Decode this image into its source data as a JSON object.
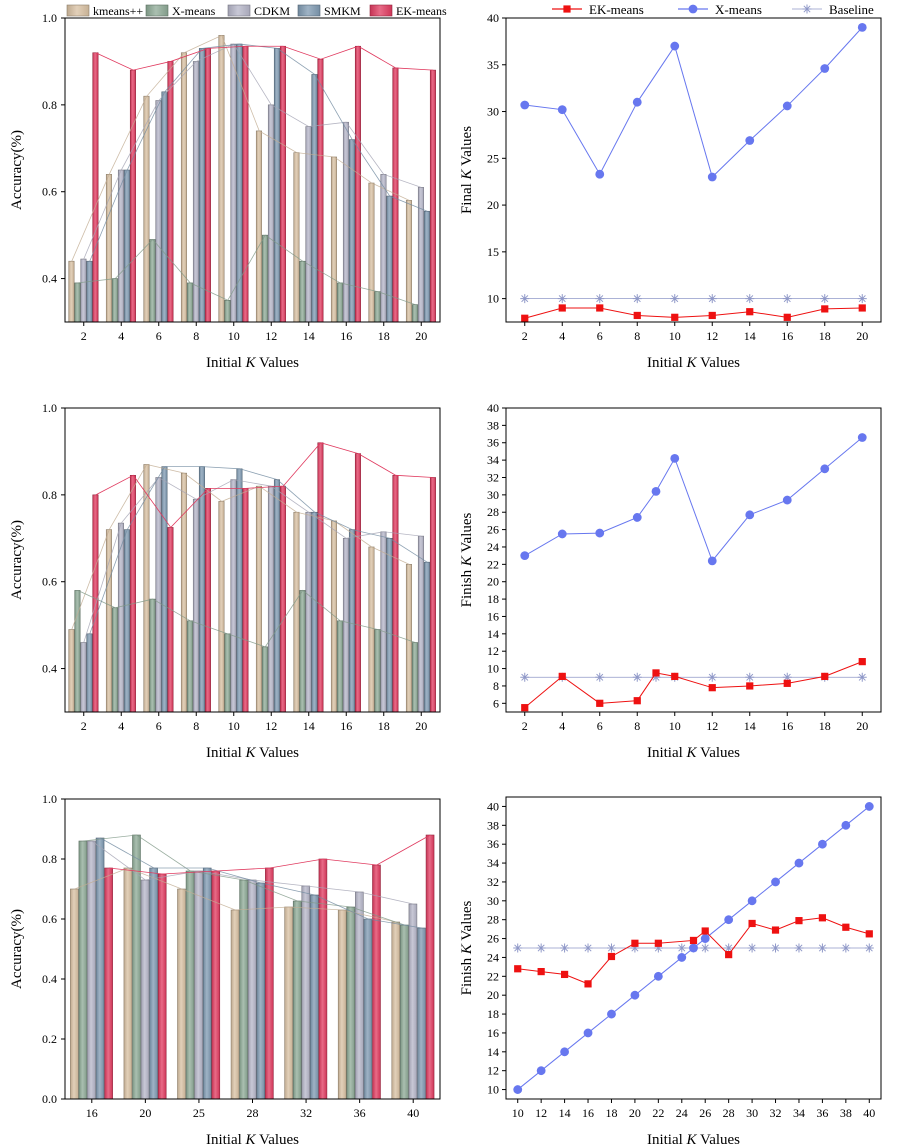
{
  "colors": {
    "kmeanspp": "#d8c0a2",
    "xmeans": "#8daa96",
    "cdkm": "#b6b6c8",
    "smkm": "#7f9ab2",
    "ekmeans": "#e03a5f",
    "ek_line": "#ee1111",
    "xm_line": "#6777ef",
    "baseline": "#8f98c8"
  },
  "chart_data": [
    {
      "id": "acc1",
      "type": "bar",
      "ylabel": "Accuracy(%)",
      "xlabel_pre": "Initial ",
      "xlabel_k": "K",
      "xlabel_post": " Values",
      "categories": [
        "2",
        "4",
        "6",
        "8",
        "10",
        "12",
        "14",
        "16",
        "18",
        "20"
      ],
      "ylim": [
        0.3,
        1.0
      ],
      "yticks": [
        0.4,
        0.6,
        0.8,
        1.0
      ],
      "legend": "top",
      "series": [
        {
          "name": "kmeans++",
          "key": "kmeanspp",
          "values": [
            0.44,
            0.64,
            0.82,
            0.92,
            0.96,
            0.74,
            0.69,
            0.68,
            0.62,
            0.58
          ]
        },
        {
          "name": "X-means",
          "key": "xmeans",
          "values": [
            0.39,
            0.4,
            0.49,
            0.39,
            0.35,
            0.5,
            0.44,
            0.39,
            0.37,
            0.34
          ]
        },
        {
          "name": "CDKM",
          "key": "cdkm",
          "values": [
            0.445,
            0.65,
            0.81,
            0.9,
            0.94,
            0.8,
            0.75,
            0.76,
            0.64,
            0.61
          ]
        },
        {
          "name": "SMKM",
          "key": "smkm",
          "values": [
            0.44,
            0.65,
            0.83,
            0.93,
            0.94,
            0.93,
            0.87,
            0.72,
            0.59,
            0.555
          ]
        },
        {
          "name": "EK-means",
          "key": "ekmeans",
          "values": [
            0.92,
            0.88,
            0.9,
            0.93,
            0.935,
            0.935,
            0.905,
            0.935,
            0.885,
            0.88
          ]
        }
      ]
    },
    {
      "id": "k1",
      "type": "line",
      "ylabel_pre": "Final ",
      "ylabel_k": "K",
      "ylabel_post": " Values",
      "xlabel_pre": "Initial ",
      "xlabel_k": "K",
      "xlabel_post": " Values",
      "x": [
        2,
        4,
        6,
        8,
        10,
        12,
        14,
        16,
        18,
        20
      ],
      "xlim": [
        1,
        21
      ],
      "ylim": [
        7.5,
        40
      ],
      "xticks": [
        2,
        4,
        6,
        8,
        10,
        12,
        14,
        16,
        18,
        20
      ],
      "yticks": [
        10,
        15,
        20,
        25,
        30,
        35,
        40
      ],
      "legend": "top",
      "series": [
        {
          "name": "EK-means",
          "key": "ek_line",
          "marker": "square",
          "values": [
            7.9,
            9.0,
            9.0,
            8.2,
            8.0,
            8.2,
            8.6,
            8.0,
            8.9,
            9.0
          ]
        },
        {
          "name": "X-means",
          "key": "xm_line",
          "marker": "circle",
          "values": [
            30.7,
            30.2,
            23.3,
            31.0,
            37.0,
            23.0,
            26.9,
            30.6,
            34.6,
            39.0
          ]
        },
        {
          "name": "Baseline",
          "key": "baseline",
          "marker": "star",
          "values": [
            10,
            10,
            10,
            10,
            10,
            10,
            10,
            10,
            10,
            10
          ]
        }
      ]
    },
    {
      "id": "acc2",
      "type": "bar",
      "ylabel": "Accuracy(%)",
      "xlabel_pre": "Initial ",
      "xlabel_k": "K",
      "xlabel_post": " Values",
      "categories": [
        "2",
        "4",
        "6",
        "8",
        "10",
        "12",
        "14",
        "16",
        "18",
        "20"
      ],
      "ylim": [
        0.3,
        1.0
      ],
      "yticks": [
        0.4,
        0.6,
        0.8,
        1.0
      ],
      "series": [
        {
          "name": "kmeans++",
          "key": "kmeanspp",
          "values": [
            0.49,
            0.72,
            0.87,
            0.85,
            0.785,
            0.82,
            0.76,
            0.74,
            0.68,
            0.64
          ]
        },
        {
          "name": "X-means",
          "key": "xmeans",
          "values": [
            0.58,
            0.54,
            0.56,
            0.51,
            0.48,
            0.45,
            0.58,
            0.51,
            0.49,
            0.46
          ]
        },
        {
          "name": "CDKM",
          "key": "cdkm",
          "values": [
            0.46,
            0.735,
            0.84,
            0.79,
            0.835,
            0.82,
            0.76,
            0.7,
            0.715,
            0.705
          ]
        },
        {
          "name": "SMKM",
          "key": "smkm",
          "values": [
            0.48,
            0.72,
            0.865,
            0.865,
            0.86,
            0.835,
            0.76,
            0.72,
            0.7,
            0.645
          ]
        },
        {
          "name": "EK-means",
          "key": "ekmeans",
          "values": [
            0.8,
            0.845,
            0.725,
            0.815,
            0.815,
            0.82,
            0.92,
            0.895,
            0.845,
            0.84
          ]
        }
      ]
    },
    {
      "id": "k2",
      "type": "line",
      "ylabel_pre": "Finish ",
      "ylabel_k": "K",
      "ylabel_post": " Values",
      "xlabel_pre": "Initial ",
      "xlabel_k": "K",
      "xlabel_post": " Values",
      "x": [
        2,
        4,
        6,
        8,
        9,
        10,
        12,
        14,
        16,
        18,
        20
      ],
      "xlim": [
        1,
        21
      ],
      "ylim": [
        5,
        40
      ],
      "xticks": [
        2,
        4,
        6,
        8,
        10,
        12,
        14,
        16,
        18,
        20
      ],
      "yticks": [
        6,
        8,
        10,
        12,
        14,
        16,
        18,
        20,
        22,
        24,
        26,
        28,
        30,
        32,
        34,
        36,
        38,
        40
      ],
      "series": [
        {
          "name": "EK-means",
          "key": "ek_line",
          "marker": "square",
          "values": [
            5.5,
            9.1,
            6.0,
            6.3,
            9.5,
            9.1,
            7.8,
            8.0,
            8.3,
            9.1,
            10.8
          ]
        },
        {
          "name": "X-means",
          "key": "xm_line",
          "marker": "circle",
          "values": [
            23.0,
            25.5,
            25.6,
            27.4,
            30.4,
            34.2,
            22.4,
            27.7,
            29.4,
            33.0,
            36.6
          ]
        },
        {
          "name": "Baseline",
          "key": "baseline",
          "marker": "star",
          "values": [
            9,
            9,
            9,
            9,
            9,
            9,
            9,
            9,
            9,
            9,
            9
          ]
        }
      ]
    },
    {
      "id": "acc3",
      "type": "bar",
      "ylabel": "Accuracy(%)",
      "xlabel_pre": "Initial ",
      "xlabel_k": "K",
      "xlabel_post": " Values",
      "categories": [
        "16",
        "20",
        "25",
        "28",
        "32",
        "36",
        "40"
      ],
      "ylim": [
        0.0,
        1.0
      ],
      "yticks": [
        0.0,
        0.2,
        0.4,
        0.6,
        0.8,
        1.0
      ],
      "series": [
        {
          "name": "kmeans++",
          "key": "kmeanspp",
          "values": [
            0.7,
            0.77,
            0.7,
            0.63,
            0.64,
            0.63,
            0.59
          ]
        },
        {
          "name": "X-means",
          "key": "xmeans",
          "values": [
            0.86,
            0.88,
            0.76,
            0.73,
            0.66,
            0.64,
            0.58
          ]
        },
        {
          "name": "CDKM",
          "key": "cdkm",
          "values": [
            0.86,
            0.73,
            0.76,
            0.73,
            0.71,
            0.69,
            0.65
          ]
        },
        {
          "name": "SMKM",
          "key": "smkm",
          "values": [
            0.87,
            0.77,
            0.77,
            0.72,
            0.68,
            0.6,
            0.57
          ]
        },
        {
          "name": "EK-means",
          "key": "ekmeans",
          "values": [
            0.77,
            0.75,
            0.76,
            0.77,
            0.8,
            0.78,
            0.88
          ]
        }
      ]
    },
    {
      "id": "k3",
      "type": "line",
      "ylabel_pre": "Finish ",
      "ylabel_k": "K",
      "ylabel_post": " Values",
      "xlabel_pre": "Initial ",
      "xlabel_k": "K",
      "xlabel_post": " Values",
      "x": [
        10,
        12,
        14,
        16,
        18,
        20,
        22,
        24,
        25,
        26,
        28,
        30,
        32,
        34,
        36,
        38,
        40
      ],
      "xlim": [
        9,
        41
      ],
      "ylim": [
        9,
        41
      ],
      "xticks": [
        10,
        12,
        14,
        16,
        18,
        20,
        22,
        24,
        26,
        28,
        30,
        32,
        34,
        36,
        38,
        40
      ],
      "yticks": [
        10,
        12,
        14,
        16,
        18,
        20,
        22,
        24,
        26,
        28,
        30,
        32,
        34,
        36,
        38,
        40
      ],
      "series": [
        {
          "name": "EK-means",
          "key": "ek_line",
          "marker": "square",
          "values": [
            22.8,
            22.5,
            22.2,
            21.2,
            24.1,
            25.5,
            25.5,
            null,
            25.8,
            26.8,
            24.3,
            27.6,
            26.9,
            27.9,
            28.2,
            27.2,
            26.5
          ]
        },
        {
          "name": "X-means",
          "key": "xm_line",
          "marker": "circle",
          "values": [
            10,
            12,
            14,
            16,
            18,
            20,
            22,
            24,
            25,
            26,
            28,
            30,
            32,
            34,
            36,
            38,
            40
          ]
        },
        {
          "name": "Baseline",
          "key": "baseline",
          "marker": "star",
          "values": [
            25,
            25,
            25,
            25,
            25,
            25,
            25,
            25,
            25,
            25,
            25,
            25,
            25,
            25,
            25,
            25,
            25
          ]
        }
      ]
    }
  ]
}
